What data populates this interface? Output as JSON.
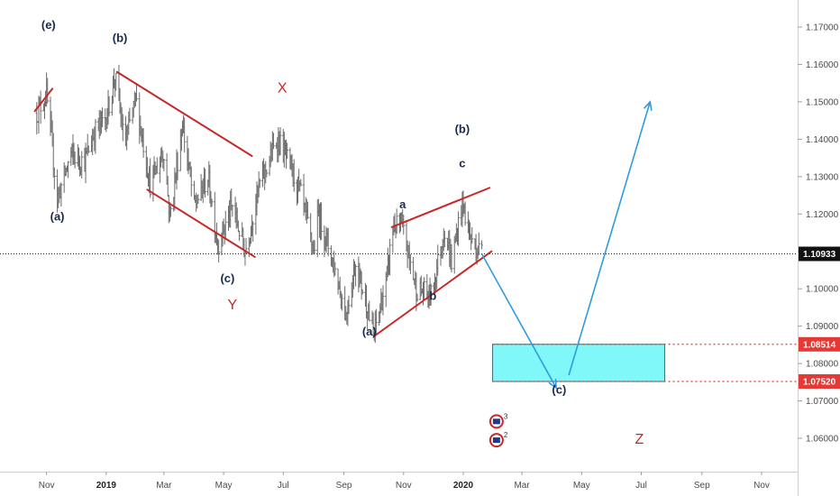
{
  "chart_data": {
    "type": "ohlc",
    "instrument": "",
    "y_range": [
      1.0525,
      1.1785
    ],
    "y_ticks": [
      "1.17000",
      "1.16000",
      "1.15000",
      "1.14000",
      "1.13000",
      "1.12000",
      "1.11000",
      "1.10000",
      "1.09000",
      "1.08000",
      "1.07000",
      "1.06000"
    ],
    "x_ticks": [
      "Nov",
      "2019",
      "Mar",
      "May",
      "Jul",
      "Sep",
      "Nov",
      "2020",
      "Mar",
      "May",
      "Jul",
      "Sep",
      "Nov"
    ],
    "x_ticks_bold": [
      "2019",
      "2020"
    ],
    "last_price": "1.10933",
    "price_path": [
      {
        "date": "2018-10-22",
        "price": 1.147
      },
      {
        "date": "2018-11-01",
        "price": 1.152
      },
      {
        "date": "2018-11-12",
        "price": 1.124
      },
      {
        "date": "2018-11-26",
        "price": 1.136
      },
      {
        "date": "2018-12-10",
        "price": 1.134
      },
      {
        "date": "2018-12-20",
        "price": 1.142
      },
      {
        "date": "2019-01-01",
        "price": 1.146
      },
      {
        "date": "2019-01-10",
        "price": 1.157
      },
      {
        "date": "2019-01-20",
        "price": 1.138
      },
      {
        "date": "2019-01-31",
        "price": 1.151
      },
      {
        "date": "2019-02-15",
        "price": 1.128
      },
      {
        "date": "2019-03-01",
        "price": 1.137
      },
      {
        "date": "2019-03-07",
        "price": 1.119
      },
      {
        "date": "2019-03-20",
        "price": 1.144
      },
      {
        "date": "2019-04-01",
        "price": 1.122
      },
      {
        "date": "2019-04-15",
        "price": 1.13
      },
      {
        "date": "2019-04-25",
        "price": 1.112
      },
      {
        "date": "2019-05-10",
        "price": 1.122
      },
      {
        "date": "2019-05-23",
        "price": 1.11
      },
      {
        "date": "2019-06-07",
        "price": 1.128
      },
      {
        "date": "2019-06-25",
        "price": 1.14
      },
      {
        "date": "2019-07-01",
        "price": 1.137
      },
      {
        "date": "2019-07-18",
        "price": 1.126
      },
      {
        "date": "2019-08-01",
        "price": 1.11
      },
      {
        "date": "2019-08-06",
        "price": 1.12
      },
      {
        "date": "2019-08-20",
        "price": 1.108
      },
      {
        "date": "2019-09-03",
        "price": 1.093
      },
      {
        "date": "2019-09-13",
        "price": 1.107
      },
      {
        "date": "2019-09-25",
        "price": 1.095
      },
      {
        "date": "2019-10-01",
        "price": 1.087
      },
      {
        "date": "2019-10-15",
        "price": 1.103
      },
      {
        "date": "2019-10-21",
        "price": 1.117
      },
      {
        "date": "2019-10-31",
        "price": 1.116
      },
      {
        "date": "2019-11-14",
        "price": 1.1
      },
      {
        "date": "2019-11-29",
        "price": 1.098
      },
      {
        "date": "2019-12-13",
        "price": 1.116
      },
      {
        "date": "2019-12-20",
        "price": 1.107
      },
      {
        "date": "2019-12-31",
        "price": 1.123
      },
      {
        "date": "2020-01-10",
        "price": 1.112
      },
      {
        "date": "2020-01-20",
        "price": 1.11
      }
    ],
    "projection_path": [
      {
        "date": "2020-01-20",
        "price": 1.1093
      },
      {
        "date": "2020-04-05",
        "price": 1.0735
      },
      {
        "date": "2020-07-10",
        "price": 1.15
      }
    ],
    "channel_lines": [
      {
        "from": {
          "date": "2018-10-20",
          "price": 1.1475
        },
        "to": {
          "date": "2018-11-07",
          "price": 1.1535
        }
      },
      {
        "from": {
          "date": "2019-01-12",
          "price": 1.158
        },
        "to": {
          "date": "2019-05-30",
          "price": 1.1355
        }
      },
      {
        "from": {
          "date": "2019-02-12",
          "price": 1.1265
        },
        "to": {
          "date": "2019-06-02",
          "price": 1.1085
        }
      },
      {
        "from": {
          "date": "2019-10-20",
          "price": 1.1165
        },
        "to": {
          "date": "2020-01-28",
          "price": 1.127
        }
      },
      {
        "from": {
          "date": "2019-10-03",
          "price": 1.0875
        },
        "to": {
          "date": "2020-01-30",
          "price": 1.11
        }
      }
    ],
    "target_zone": {
      "upper": "1.08514",
      "lower": "1.07520",
      "from_date": "2020-01-31",
      "to_date": "2020-07-25",
      "color": "#80f7f9"
    },
    "wave_labels": [
      {
        "text": "(e)",
        "date": "2018-11-03",
        "price": 1.1695,
        "style": "navy"
      },
      {
        "text": "(b)",
        "date": "2019-01-15",
        "price": 1.166,
        "style": "navy"
      },
      {
        "text": "(a)",
        "date": "2018-11-12",
        "price": 1.1183,
        "style": "navy"
      },
      {
        "text": "(c)",
        "date": "2019-05-05",
        "price": 1.1017,
        "style": "navy"
      },
      {
        "text": "Y",
        "date": "2019-05-10",
        "price": 1.0945,
        "style": "red"
      },
      {
        "text": "X",
        "date": "2019-06-30",
        "price": 1.1525,
        "style": "red"
      },
      {
        "text": "(a)",
        "date": "2019-09-27",
        "price": 1.0875,
        "style": "navy"
      },
      {
        "text": "a",
        "date": "2019-10-31",
        "price": 1.1215,
        "style": "navy"
      },
      {
        "text": "b",
        "date": "2019-12-01",
        "price": 1.097,
        "style": "navy"
      },
      {
        "text": "c",
        "date": "2019-12-31",
        "price": 1.1325,
        "style": "navy"
      },
      {
        "text": "(b)",
        "date": "2019-12-31",
        "price": 1.1416,
        "style": "navy"
      },
      {
        "text": "(c)",
        "date": "2020-04-08",
        "price": 1.072,
        "style": "navy"
      },
      {
        "text": "Z",
        "date": "2020-06-29",
        "price": 1.0585,
        "style": "red"
      }
    ],
    "events": [
      {
        "date": "2020-02-04",
        "price": 1.0645,
        "count": "3",
        "color": "#c62828"
      },
      {
        "date": "2020-02-04",
        "price": 1.0595,
        "count": "2",
        "color": "#c62828"
      }
    ],
    "colors": {
      "channel": "#c62828",
      "projection": "#2f9bdc",
      "zone": "#80f7f9",
      "price_tag": "#111111",
      "level_tag": "#e53935",
      "bars": "#6b6b6b"
    }
  }
}
